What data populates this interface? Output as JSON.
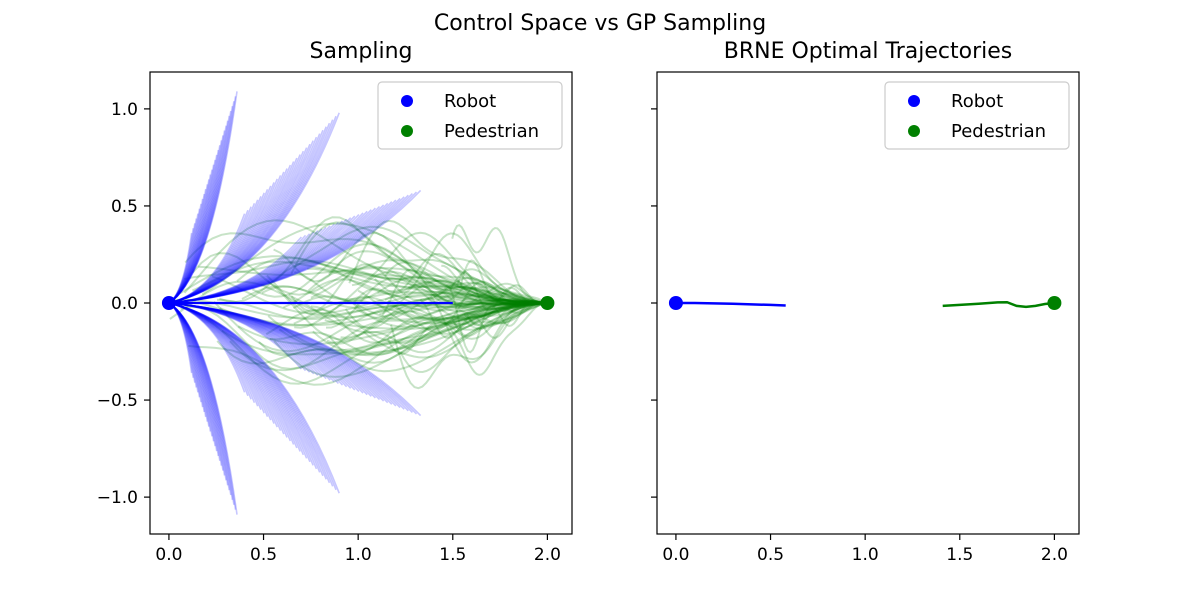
{
  "figure": {
    "suptitle": "Control Space vs GP Sampling"
  },
  "colors": {
    "robot": "#0000ff",
    "pedestrian": "#008000"
  },
  "chart_data": [
    {
      "type": "line",
      "title": "Sampling",
      "xlim": [
        -0.1,
        2.13
      ],
      "ylim": [
        -1.19,
        1.19
      ],
      "xticks": [
        0.0,
        0.5,
        1.0,
        1.5,
        2.0
      ],
      "xtick_labels": [
        "0.0",
        "0.5",
        "1.0",
        "1.5",
        "2.0"
      ],
      "yticks": [
        -1.0,
        -0.5,
        0.0,
        0.5,
        1.0
      ],
      "ytick_labels": [
        "−1.0",
        "−0.5",
        "0.0",
        "0.5",
        "1.0"
      ],
      "grid": false,
      "legend_position": "top-right",
      "legend": [
        "Robot",
        "Pedestrian"
      ],
      "robot_start": [
        0.0,
        0.0
      ],
      "pedestrian_start": [
        2.0,
        0.0
      ],
      "robot_reference_line": [
        [
          0.0,
          0.0
        ],
        [
          1.5,
          0.0
        ]
      ],
      "robot_sample_fans": [
        {
          "end": [
            0.36,
            1.09
          ],
          "start_end": [
            0.12,
            0.36
          ],
          "count": 30
        },
        {
          "end": [
            0.9,
            0.98
          ],
          "start_end": [
            0.4,
            0.46
          ],
          "count": 30
        },
        {
          "end": [
            1.33,
            0.58
          ],
          "start_end": [
            0.7,
            0.34
          ],
          "count": 30
        },
        {
          "end": [
            0.36,
            -1.09
          ],
          "start_end": [
            0.12,
            -0.36
          ],
          "count": 30
        },
        {
          "end": [
            0.9,
            -0.98
          ],
          "start_end": [
            0.4,
            -0.46
          ],
          "count": 30
        },
        {
          "end": [
            1.33,
            -0.58
          ],
          "start_end": [
            0.7,
            -0.34
          ],
          "count": 30
        }
      ],
      "pedestrian_samples": {
        "count": 100,
        "x_end_range": [
          0.0,
          1.6
        ],
        "y_spread": 0.6
      }
    },
    {
      "type": "line",
      "title": "BRNE Optimal Trajectories",
      "xlim": [
        -0.1,
        2.13
      ],
      "ylim": [
        -1.19,
        1.19
      ],
      "xticks": [
        0.0,
        0.5,
        1.0,
        1.5,
        2.0
      ],
      "xtick_labels": [
        "0.0",
        "0.5",
        "1.0",
        "1.5",
        "2.0"
      ],
      "yticks": [
        -1.0,
        -0.5,
        0.0,
        0.5,
        1.0
      ],
      "shared_y": true,
      "grid": false,
      "legend_position": "top-right",
      "legend": [
        "Robot",
        "Pedestrian"
      ],
      "robot_start": [
        0.0,
        0.0
      ],
      "pedestrian_start": [
        2.0,
        0.0
      ],
      "series": [
        {
          "name": "Robot",
          "x": [
            0.0,
            0.1,
            0.2,
            0.3,
            0.4,
            0.5,
            0.58
          ],
          "y": [
            0.0,
            0.0,
            -0.002,
            -0.004,
            -0.007,
            -0.01,
            -0.013
          ]
        },
        {
          "name": "Pedestrian",
          "x": [
            1.41,
            1.5,
            1.6,
            1.7,
            1.75,
            1.8,
            1.85,
            1.9,
            1.95,
            2.0
          ],
          "y": [
            -0.015,
            -0.01,
            -0.004,
            0.003,
            0.004,
            -0.015,
            -0.02,
            -0.015,
            -0.005,
            0.0
          ]
        }
      ]
    }
  ]
}
